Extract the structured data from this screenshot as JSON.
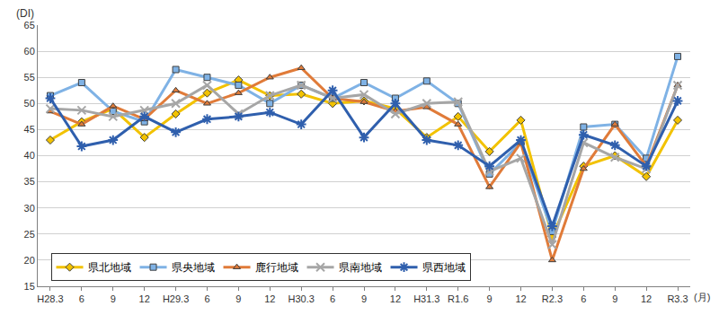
{
  "chart_data": {
    "type": "line",
    "ylabel": "(DI)",
    "xlabel": "(月)",
    "categories": [
      "H28.3",
      "6",
      "9",
      "12",
      "H29.3",
      "6",
      "9",
      "12",
      "H30.3",
      "6",
      "9",
      "12",
      "H31.3",
      "R1.6",
      "9",
      "12",
      "R2.3",
      "6",
      "9",
      "12",
      "R3.3"
    ],
    "ylim": [
      15,
      65
    ],
    "yticks": [
      15,
      20,
      25,
      30,
      35,
      40,
      45,
      50,
      55,
      60,
      65
    ],
    "grid": true,
    "legend": "lower left",
    "series": [
      {
        "name": "県北地域",
        "color": "#f2c200",
        "marker": "diamond",
        "values": [
          43,
          46.5,
          49,
          43.5,
          48,
          52,
          54.5,
          51.5,
          51.8,
          50,
          50.5,
          49,
          43.5,
          47.5,
          40.8,
          46.8,
          24.5,
          38,
          40,
          36,
          46.8
        ]
      },
      {
        "name": "県央地域",
        "color": "#7fb2e5",
        "marker": "square",
        "values": [
          51.5,
          54,
          48.5,
          46.5,
          56.5,
          55,
          53.5,
          50,
          53.5,
          51,
          54,
          51,
          54.3,
          50,
          36.5,
          42.5,
          25.5,
          45.5,
          46,
          39.5,
          59
        ]
      },
      {
        "name": "鹿行地域",
        "color": "#e07b39",
        "marker": "triangle",
        "values": [
          48.5,
          46,
          49.5,
          47,
          52.5,
          50,
          52,
          55,
          56.8,
          51,
          50.3,
          48.5,
          49.3,
          46,
          34,
          42.5,
          20,
          37.5,
          46,
          38,
          53.5
        ]
      },
      {
        "name": "県南地域",
        "color": "#a6a6a6",
        "marker": "x",
        "values": [
          49,
          48.7,
          47.5,
          48.7,
          50,
          53.5,
          48,
          51.5,
          53.5,
          51,
          51.7,
          48,
          50,
          50.3,
          37,
          39.5,
          23,
          42.5,
          39.7,
          37.5,
          53.5
        ]
      },
      {
        "name": "県西地域",
        "color": "#2f5fad",
        "marker": "asterisk",
        "values": [
          51,
          41.8,
          43,
          47.5,
          44.5,
          47,
          47.5,
          48.3,
          46,
          52.5,
          43.5,
          50,
          43,
          42,
          38,
          43,
          26.5,
          44,
          42,
          38,
          50.5
        ]
      }
    ]
  }
}
